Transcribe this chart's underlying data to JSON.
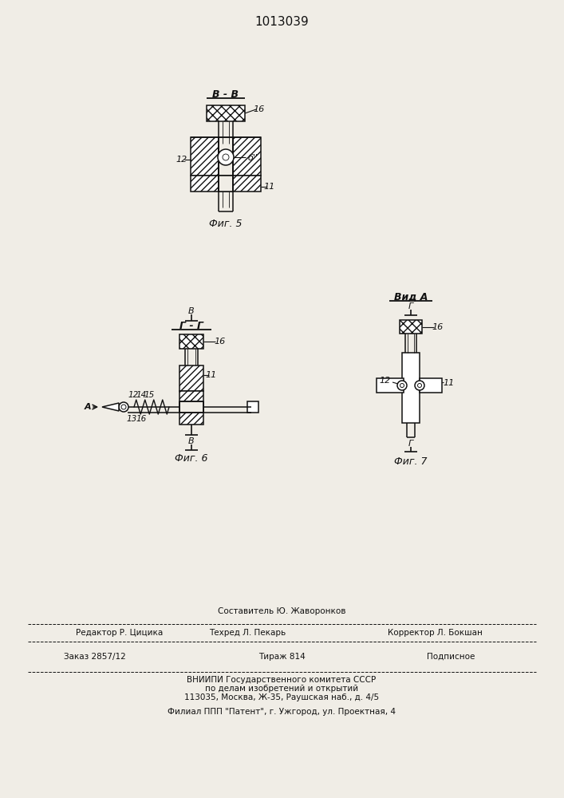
{
  "title": "1013039",
  "background": "#f0ede6",
  "fig5_label": "Фиг. 5",
  "fig6_label": "Фиг. 6",
  "fig7_label": "Фиг. 7",
  "lbl_BB": "B - B",
  "lbl_GG": "Г - Г",
  "lbl_VidA": "Вид A",
  "lbl_B_upper": "B",
  "lbl_G_lower": "Г",
  "lbl_G_upper": "Г",
  "lbl_B_lower": "B",
  "footer_composer": "Составитель Ю. Жаворонков",
  "footer_editor": "Редактор Р. Цицика",
  "footer_techred": "Техред Л. Пекарь",
  "footer_corrector": "Корректор Л. Бокшан",
  "footer_order": "Заказ 2857/12",
  "footer_tirazh": "Тираж 814",
  "footer_podp": "Подписное",
  "footer_org1": "ВНИИПИ Государственного комитета СССР",
  "footer_org2": "по делам изобретений и открытий",
  "footer_addr": "113035, Москва, Ж-35, Раушская наб., д. 4/5",
  "footer_filial": "Филиал ППП \"Патент\", г. Ужгород, ул. Проектная, 4"
}
